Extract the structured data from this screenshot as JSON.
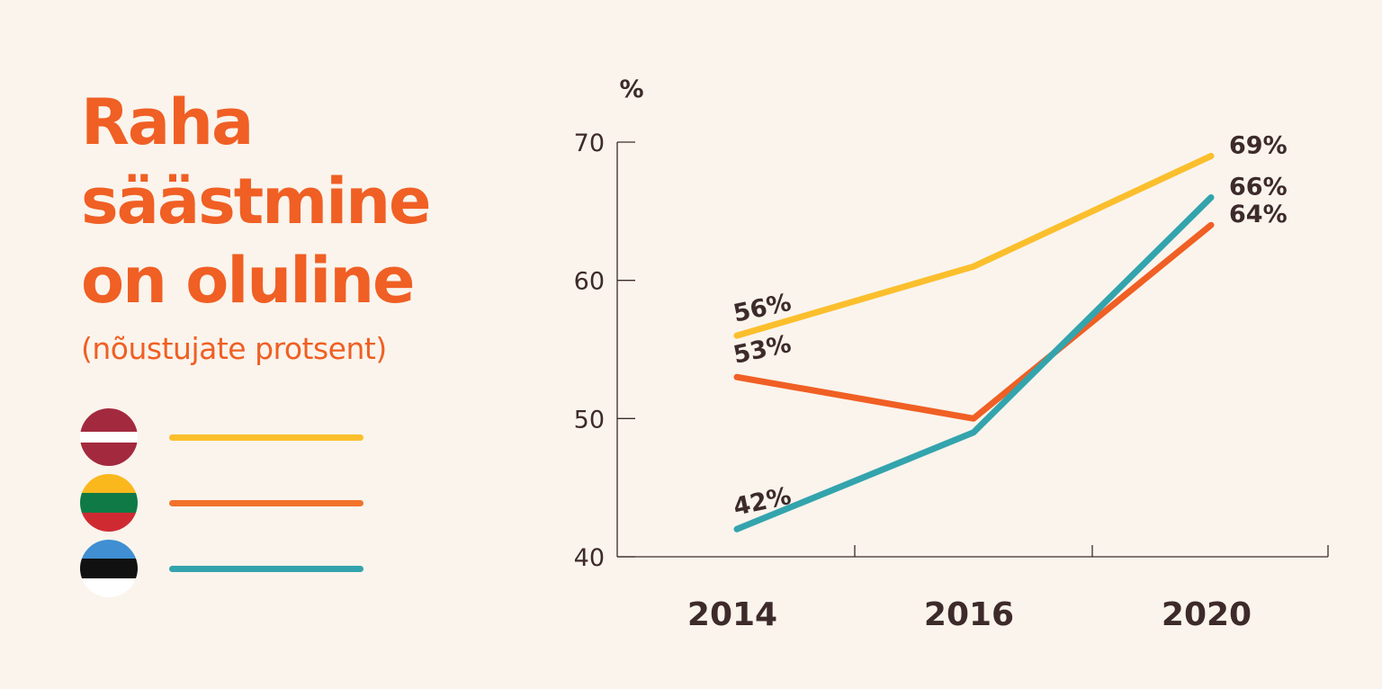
{
  "title_lines": [
    "Raha",
    "säästmine",
    "on oluline"
  ],
  "subtitle": "(nõustujate protsent)",
  "legend": [
    {
      "flag": "latvia-flag-icon",
      "bands": [
        "#a3293f",
        "#ffffff",
        "#a3293f"
      ],
      "band_ratio": [
        2,
        1,
        2
      ],
      "color": "#fbbf2d"
    },
    {
      "flag": "lithuania-flag-icon",
      "bands": [
        "#fbb81c",
        "#0f7a45",
        "#cf2a32"
      ],
      "band_ratio": [
        1,
        1,
        1
      ],
      "color": "#f2732b"
    },
    {
      "flag": "estonia-flag-icon",
      "bands": [
        "#3f8fd2",
        "#111111",
        "#ffffff"
      ],
      "band_ratio": [
        1,
        1,
        1
      ],
      "color": "#33a4ad"
    }
  ],
  "chart_data": {
    "type": "line",
    "title": "Raha säästmine on oluline",
    "subtitle": "(nõustujate protsent)",
    "ylabel": "%",
    "xlabel": "",
    "categories": [
      "2014",
      "2016",
      "2020"
    ],
    "yticks": [
      40,
      50,
      60,
      70
    ],
    "ylim": [
      40,
      70
    ],
    "grid": false,
    "series": [
      {
        "color": "#fbbf2d",
        "values": [
          56,
          61,
          69
        ],
        "labels": [
          "56%",
          "",
          "69%"
        ]
      },
      {
        "color": "#f05f24",
        "values": [
          53,
          50,
          64
        ],
        "labels": [
          "53%",
          "",
          "64%"
        ]
      },
      {
        "color": "#33a4ad",
        "values": [
          42,
          49,
          66
        ],
        "labels": [
          "42%",
          "",
          "66%"
        ]
      }
    ]
  }
}
